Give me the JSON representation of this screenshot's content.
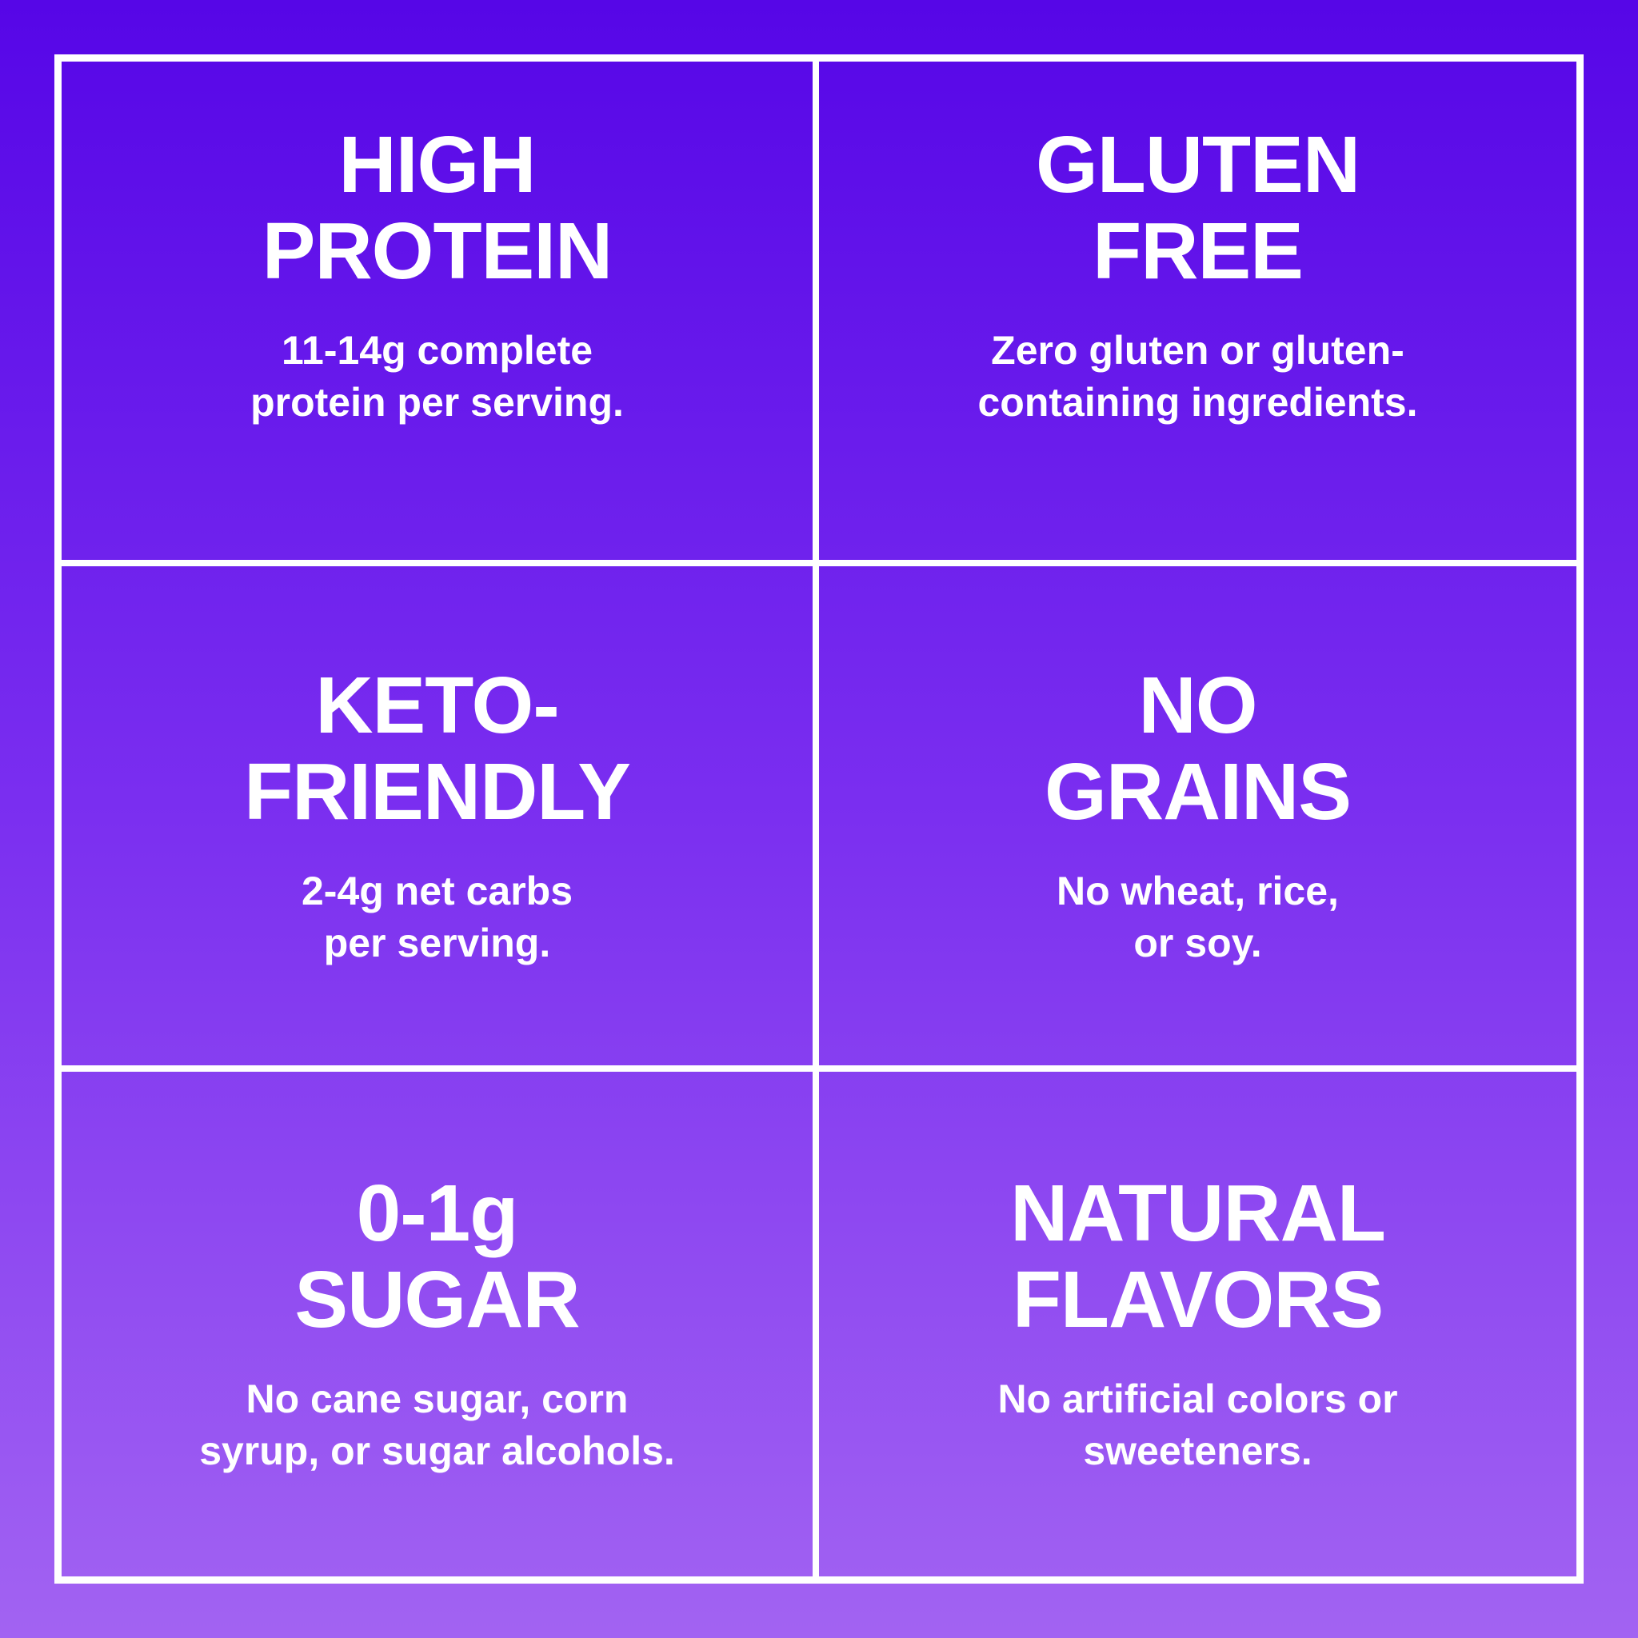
{
  "theme": {
    "gradient_top": "#5606e7",
    "gradient_mid": "#7b2ff0",
    "gradient_bottom": "#a263f2",
    "grid_line_color": "#ffffff",
    "text_color": "#ffffff"
  },
  "cells": [
    {
      "key": "high-protein",
      "title": "HIGH\nPROTEIN",
      "subtitle": "11-14g complete\nprotein per serving."
    },
    {
      "key": "gluten-free",
      "title": "GLUTEN\nFREE",
      "subtitle": "Zero gluten or gluten-\ncontaining ingredients."
    },
    {
      "key": "keto-friendly",
      "title": "KETO-\nFRIENDLY",
      "subtitle": "2-4g net carbs\nper serving."
    },
    {
      "key": "no-grains",
      "title": "NO\nGRAINS",
      "subtitle": "No wheat, rice,\nor soy."
    },
    {
      "key": "zero-sugar",
      "title": "0-1g\nSUGAR",
      "subtitle": "No cane sugar, corn\nsyrup, or sugar alcohols."
    },
    {
      "key": "natural-flavors",
      "title": "NATURAL\nFLAVORS",
      "subtitle": "No artificial colors or\nsweeteners."
    }
  ]
}
